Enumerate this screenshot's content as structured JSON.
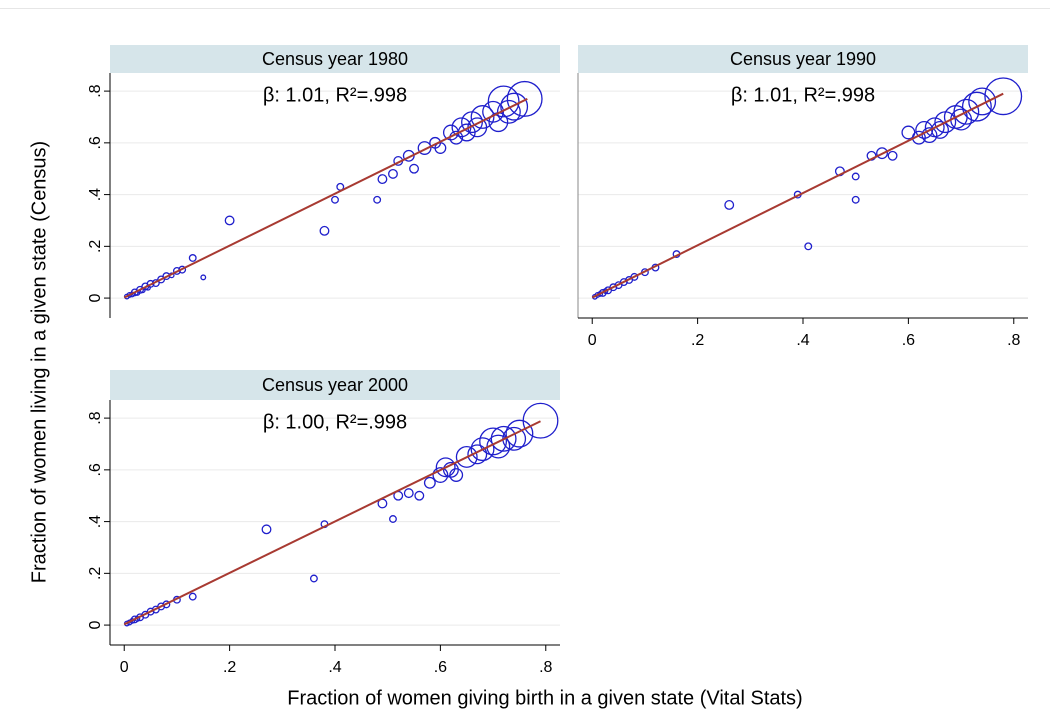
{
  "y_label": "Fraction of women living in a given state (Census)",
  "x_label": "Fraction of women giving birth in a given state (Vital Stats)",
  "chart_data": [
    {
      "type": "scatter",
      "title": "Census year 1980",
      "annotation": "β: 1.01, R²=.998",
      "x": [
        0.005,
        0.01,
        0.015,
        0.02,
        0.025,
        0.03,
        0.035,
        0.04,
        0.045,
        0.05,
        0.06,
        0.07,
        0.08,
        0.09,
        0.1,
        0.11,
        0.13,
        0.15,
        0.2,
        0.38,
        0.4,
        0.41,
        0.48,
        0.49,
        0.51,
        0.52,
        0.54,
        0.55,
        0.57,
        0.59,
        0.6,
        0.62,
        0.63,
        0.64,
        0.65,
        0.66,
        0.67,
        0.68,
        0.7,
        0.71,
        0.72,
        0.73,
        0.74,
        0.76
      ],
      "y": [
        0.006,
        0.012,
        0.014,
        0.022,
        0.02,
        0.032,
        0.03,
        0.045,
        0.04,
        0.055,
        0.058,
        0.072,
        0.085,
        0.088,
        0.105,
        0.11,
        0.155,
        0.08,
        0.3,
        0.26,
        0.38,
        0.43,
        0.38,
        0.46,
        0.48,
        0.53,
        0.55,
        0.5,
        0.58,
        0.6,
        0.58,
        0.64,
        0.62,
        0.66,
        0.64,
        0.68,
        0.66,
        0.7,
        0.72,
        0.68,
        0.76,
        0.72,
        0.74,
        0.77
      ],
      "sizes": [
        1,
        1,
        1,
        2,
        1,
        2,
        1,
        2,
        1,
        2,
        2,
        2,
        2,
        1,
        2,
        2,
        2,
        1,
        3,
        3,
        2,
        2,
        2,
        3,
        3,
        3,
        4,
        3,
        5,
        4,
        4,
        6,
        5,
        8,
        7,
        9,
        8,
        10,
        9,
        8,
        14,
        10,
        12,
        16
      ],
      "fit_line": {
        "x": [
          0,
          0.765
        ],
        "y": [
          0.002,
          0.77
        ],
        "color": "#a83a32"
      },
      "color": "#1f1fcc",
      "show_xaxis": false,
      "show_yaxis": true,
      "grid": true,
      "xlim": [
        -0.027,
        0.827
      ],
      "ylim": [
        -0.077,
        0.87
      ],
      "xticks": [
        0,
        {
          "value": 0.2,
          "label": ".2"
        },
        {
          "value": 0.4,
          "label": ".4"
        },
        {
          "value": 0.6,
          "label": ".6"
        },
        {
          "value": 0.8,
          "label": ".8"
        }
      ],
      "yticks": [
        0,
        {
          "value": 0.2,
          "label": ".2"
        },
        {
          "value": 0.4,
          "label": ".4"
        },
        {
          "value": 0.6,
          "label": ".6"
        },
        {
          "value": 0.8,
          "label": ".8"
        }
      ]
    },
    {
      "type": "scatter",
      "title": "Census year 1990",
      "annotation": "β: 1.01, R²=.998",
      "x": [
        0.005,
        0.01,
        0.015,
        0.02,
        0.025,
        0.03,
        0.04,
        0.05,
        0.06,
        0.07,
        0.08,
        0.1,
        0.12,
        0.16,
        0.26,
        0.39,
        0.41,
        0.47,
        0.5,
        0.5,
        0.53,
        0.55,
        0.57,
        0.6,
        0.62,
        0.63,
        0.64,
        0.65,
        0.66,
        0.67,
        0.69,
        0.7,
        0.71,
        0.73,
        0.74,
        0.78
      ],
      "y": [
        0.005,
        0.012,
        0.016,
        0.02,
        0.027,
        0.03,
        0.042,
        0.05,
        0.062,
        0.07,
        0.082,
        0.1,
        0.118,
        0.17,
        0.36,
        0.4,
        0.2,
        0.49,
        0.38,
        0.47,
        0.55,
        0.56,
        0.55,
        0.64,
        0.62,
        0.65,
        0.63,
        0.66,
        0.65,
        0.68,
        0.7,
        0.69,
        0.72,
        0.74,
        0.76,
        0.78
      ],
      "sizes": [
        1,
        1,
        1,
        2,
        1,
        2,
        2,
        2,
        2,
        2,
        2,
        2,
        2,
        2,
        3,
        2,
        2,
        3,
        2,
        2,
        3,
        4,
        3,
        5,
        5,
        7,
        6,
        8,
        7,
        9,
        10,
        9,
        11,
        13,
        12,
        17
      ],
      "fit_line": {
        "x": [
          0,
          0.78
        ],
        "y": [
          0.002,
          0.79
        ],
        "color": "#a83a32"
      },
      "color": "#1f1fcc",
      "show_xaxis": true,
      "show_yaxis": false,
      "grid": true,
      "xlim": [
        -0.027,
        0.827
      ],
      "ylim": [
        -0.077,
        0.87
      ],
      "xticks": [
        0,
        {
          "value": 0.2,
          "label": ".2"
        },
        {
          "value": 0.4,
          "label": ".4"
        },
        {
          "value": 0.6,
          "label": ".6"
        },
        {
          "value": 0.8,
          "label": ".8"
        }
      ],
      "yticks": [
        0,
        {
          "value": 0.2,
          "label": ".2"
        },
        {
          "value": 0.4,
          "label": ".4"
        },
        {
          "value": 0.6,
          "label": ".6"
        },
        {
          "value": 0.8,
          "label": ".8"
        }
      ]
    },
    {
      "type": "scatter",
      "title": "Census year 2000",
      "annotation": "β: 1.00, R²=.998",
      "x": [
        0.005,
        0.01,
        0.015,
        0.02,
        0.025,
        0.03,
        0.04,
        0.05,
        0.06,
        0.07,
        0.08,
        0.1,
        0.13,
        0.27,
        0.36,
        0.38,
        0.49,
        0.51,
        0.52,
        0.54,
        0.56,
        0.58,
        0.6,
        0.61,
        0.62,
        0.63,
        0.65,
        0.67,
        0.68,
        0.7,
        0.71,
        0.72,
        0.74,
        0.75,
        0.79
      ],
      "y": [
        0.006,
        0.01,
        0.016,
        0.022,
        0.024,
        0.03,
        0.04,
        0.052,
        0.06,
        0.072,
        0.08,
        0.098,
        0.11,
        0.37,
        0.18,
        0.39,
        0.47,
        0.41,
        0.5,
        0.51,
        0.5,
        0.55,
        0.58,
        0.61,
        0.6,
        0.58,
        0.65,
        0.66,
        0.68,
        0.71,
        0.69,
        0.72,
        0.72,
        0.74,
        0.79
      ],
      "sizes": [
        1,
        1,
        1,
        2,
        1,
        2,
        2,
        2,
        2,
        2,
        2,
        2,
        2,
        3,
        2,
        2,
        3,
        2,
        3,
        3,
        3,
        4,
        6,
        8,
        6,
        5,
        9,
        8,
        10,
        12,
        10,
        11,
        10,
        12,
        16
      ],
      "fit_line": {
        "x": [
          0,
          0.79
        ],
        "y": [
          0.003,
          0.788
        ],
        "color": "#a83a32"
      },
      "color": "#1f1fcc",
      "show_xaxis": true,
      "show_yaxis": true,
      "grid": true,
      "xlim": [
        -0.027,
        0.827
      ],
      "ylim": [
        -0.077,
        0.87
      ],
      "xticks": [
        0,
        {
          "value": 0.2,
          "label": ".2"
        },
        {
          "value": 0.4,
          "label": ".4"
        },
        {
          "value": 0.6,
          "label": ".6"
        },
        {
          "value": 0.8,
          "label": ".8"
        }
      ],
      "yticks": [
        0,
        {
          "value": 0.2,
          "label": ".2"
        },
        {
          "value": 0.4,
          "label": ".4"
        },
        {
          "value": 0.6,
          "label": ".6"
        },
        {
          "value": 0.8,
          "label": ".8"
        }
      ]
    }
  ]
}
